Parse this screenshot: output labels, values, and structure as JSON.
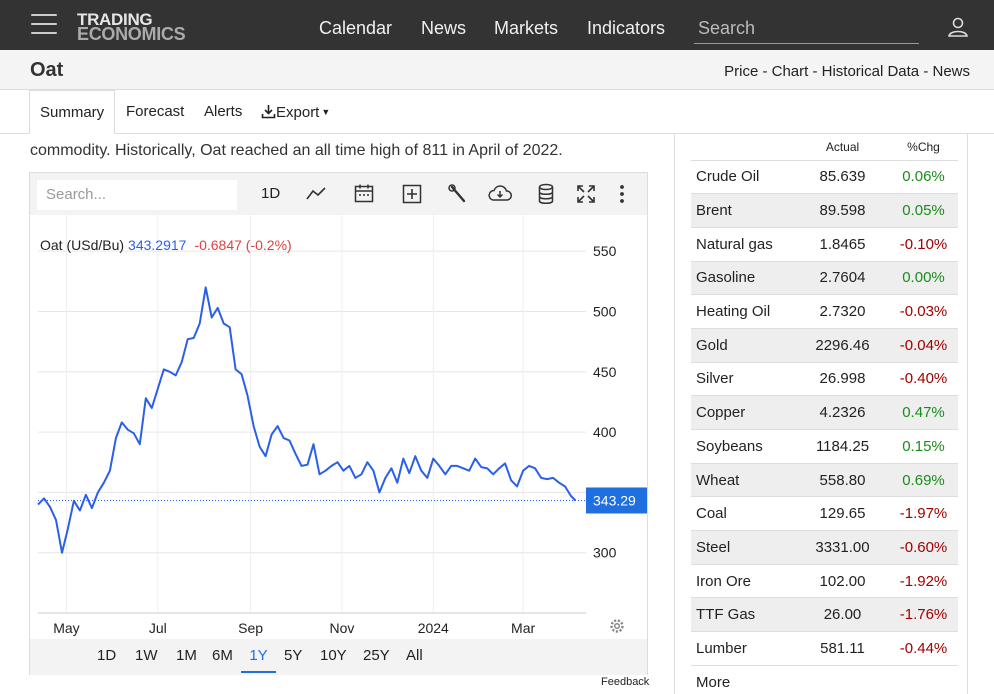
{
  "header": {
    "logo_line1": "TRADING",
    "logo_line2": "ECONOMICS",
    "nav": [
      "Calendar",
      "News",
      "Markets",
      "Indicators"
    ],
    "search_placeholder": "Search"
  },
  "subheader": {
    "title": "Oat",
    "breadcrumbs": "Price - Chart - Historical Data - News"
  },
  "tabs": [
    "Summary",
    "Forecast",
    "Alerts",
    "Export"
  ],
  "lead_text": "commodity. Historically, Oat reached an all time high of 811 in April of 2022.",
  "chart": {
    "search_placeholder": "Search...",
    "interval_label": "1D",
    "legend_name": "Oat (USd/Bu)",
    "legend_value": "343.2917",
    "legend_change": "-0.6847 (-0.2%)",
    "last_price_label": "343.29",
    "range_buttons": [
      "1D",
      "1W",
      "1M",
      "6M",
      "1Y",
      "5Y",
      "10Y",
      "25Y",
      "All"
    ],
    "active_range": "1Y",
    "feedback_label": "Feedback"
  },
  "chart_data": {
    "type": "line",
    "series": [
      {
        "name": "Oat (USd/Bu)",
        "color": "#2a5fe8",
        "x": [
          "2023-04-12",
          "2023-04-16",
          "2023-04-20",
          "2023-04-24",
          "2023-04-28",
          "2023-05-02",
          "2023-05-06",
          "2023-05-10",
          "2023-05-14",
          "2023-05-18",
          "2023-05-22",
          "2023-05-26",
          "2023-05-30",
          "2023-06-03",
          "2023-06-07",
          "2023-06-11",
          "2023-06-15",
          "2023-06-19",
          "2023-06-23",
          "2023-06-27",
          "2023-07-01",
          "2023-07-05",
          "2023-07-09",
          "2023-07-13",
          "2023-07-17",
          "2023-07-21",
          "2023-07-25",
          "2023-07-29",
          "2023-08-02",
          "2023-08-06",
          "2023-08-10",
          "2023-08-14",
          "2023-08-18",
          "2023-08-22",
          "2023-08-26",
          "2023-08-30",
          "2023-09-03",
          "2023-09-07",
          "2023-09-11",
          "2023-09-15",
          "2023-09-19",
          "2023-09-23",
          "2023-09-27",
          "2023-10-01",
          "2023-10-05",
          "2023-10-09",
          "2023-10-13",
          "2023-10-17",
          "2023-10-21",
          "2023-10-25",
          "2023-10-29",
          "2023-11-02",
          "2023-11-06",
          "2023-11-10",
          "2023-11-14",
          "2023-11-18",
          "2023-11-22",
          "2023-11-26",
          "2023-11-30",
          "2023-12-04",
          "2023-12-08",
          "2023-12-12",
          "2023-12-16",
          "2023-12-20",
          "2023-12-24",
          "2023-12-28",
          "2024-01-01",
          "2024-01-05",
          "2024-01-09",
          "2024-01-13",
          "2024-01-17",
          "2024-01-21",
          "2024-01-25",
          "2024-01-29",
          "2024-02-02",
          "2024-02-06",
          "2024-02-10",
          "2024-02-14",
          "2024-02-18",
          "2024-02-22",
          "2024-02-26",
          "2024-03-01",
          "2024-03-05",
          "2024-03-09",
          "2024-03-13",
          "2024-03-17",
          "2024-03-21",
          "2024-03-25",
          "2024-03-29",
          "2024-04-02",
          "2024-04-05"
        ],
        "y": [
          340,
          345,
          338,
          327,
          300,
          320,
          343,
          335,
          348,
          337,
          350,
          358,
          368,
          395,
          408,
          402,
          399,
          390,
          428,
          420,
          436,
          452,
          450,
          447,
          458,
          477,
          478,
          490,
          520,
          495,
          503,
          490,
          487,
          452,
          448,
          430,
          405,
          388,
          380,
          398,
          405,
          395,
          393,
          382,
          372,
          373,
          390,
          365,
          368,
          372,
          375,
          368,
          372,
          362,
          365,
          375,
          368,
          350,
          362,
          370,
          358,
          378,
          366,
          380,
          368,
          362,
          378,
          372,
          365,
          372,
          372,
          370,
          368,
          378,
          371,
          370,
          365,
          370,
          374,
          360,
          355,
          368,
          372,
          370,
          362,
          361,
          362,
          358,
          355,
          347,
          343.29
        ]
      }
    ],
    "ylim": [
      250,
      580
    ],
    "y_ticks": [
      300,
      350,
      400,
      450,
      500,
      550
    ],
    "x_ticks": [
      "May",
      "Jul",
      "Sep",
      "Nov",
      "2024",
      "Mar"
    ],
    "x_tick_dates": [
      "2023-05-01",
      "2023-07-01",
      "2023-09-01",
      "2023-11-01",
      "2024-01-01",
      "2024-03-01"
    ],
    "x_range": [
      "2023-04-12",
      "2024-04-12"
    ],
    "last_value": 343.29,
    "grid": true
  },
  "sidebar": {
    "col_actual": "Actual",
    "col_chg": "%Chg",
    "up_color": "#1a8c1a",
    "down_color": "#a00000",
    "rows": [
      {
        "name": "Crude Oil",
        "actual": "85.639",
        "chg": "0.06%",
        "dir": "up"
      },
      {
        "name": "Brent",
        "actual": "89.598",
        "chg": "0.05%",
        "dir": "up"
      },
      {
        "name": "Natural gas",
        "actual": "1.8465",
        "chg": "-0.10%",
        "dir": "down"
      },
      {
        "name": "Gasoline",
        "actual": "2.7604",
        "chg": "0.00%",
        "dir": "up"
      },
      {
        "name": "Heating Oil",
        "actual": "2.7320",
        "chg": "-0.03%",
        "dir": "down"
      },
      {
        "name": "Gold",
        "actual": "2296.46",
        "chg": "-0.04%",
        "dir": "down"
      },
      {
        "name": "Silver",
        "actual": "26.998",
        "chg": "-0.40%",
        "dir": "down"
      },
      {
        "name": "Copper",
        "actual": "4.2326",
        "chg": "0.47%",
        "dir": "up"
      },
      {
        "name": "Soybeans",
        "actual": "1184.25",
        "chg": "0.15%",
        "dir": "up"
      },
      {
        "name": "Wheat",
        "actual": "558.80",
        "chg": "0.69%",
        "dir": "up"
      },
      {
        "name": "Coal",
        "actual": "129.65",
        "chg": "-1.97%",
        "dir": "down"
      },
      {
        "name": "Steel",
        "actual": "3331.00",
        "chg": "-0.60%",
        "dir": "down"
      },
      {
        "name": "Iron Ore",
        "actual": "102.00",
        "chg": "-1.92%",
        "dir": "down"
      },
      {
        "name": "TTF Gas",
        "actual": "26.00",
        "chg": "-1.76%",
        "dir": "down"
      },
      {
        "name": "Lumber",
        "actual": "581.11",
        "chg": "-0.44%",
        "dir": "down"
      }
    ],
    "more_label": "More"
  }
}
